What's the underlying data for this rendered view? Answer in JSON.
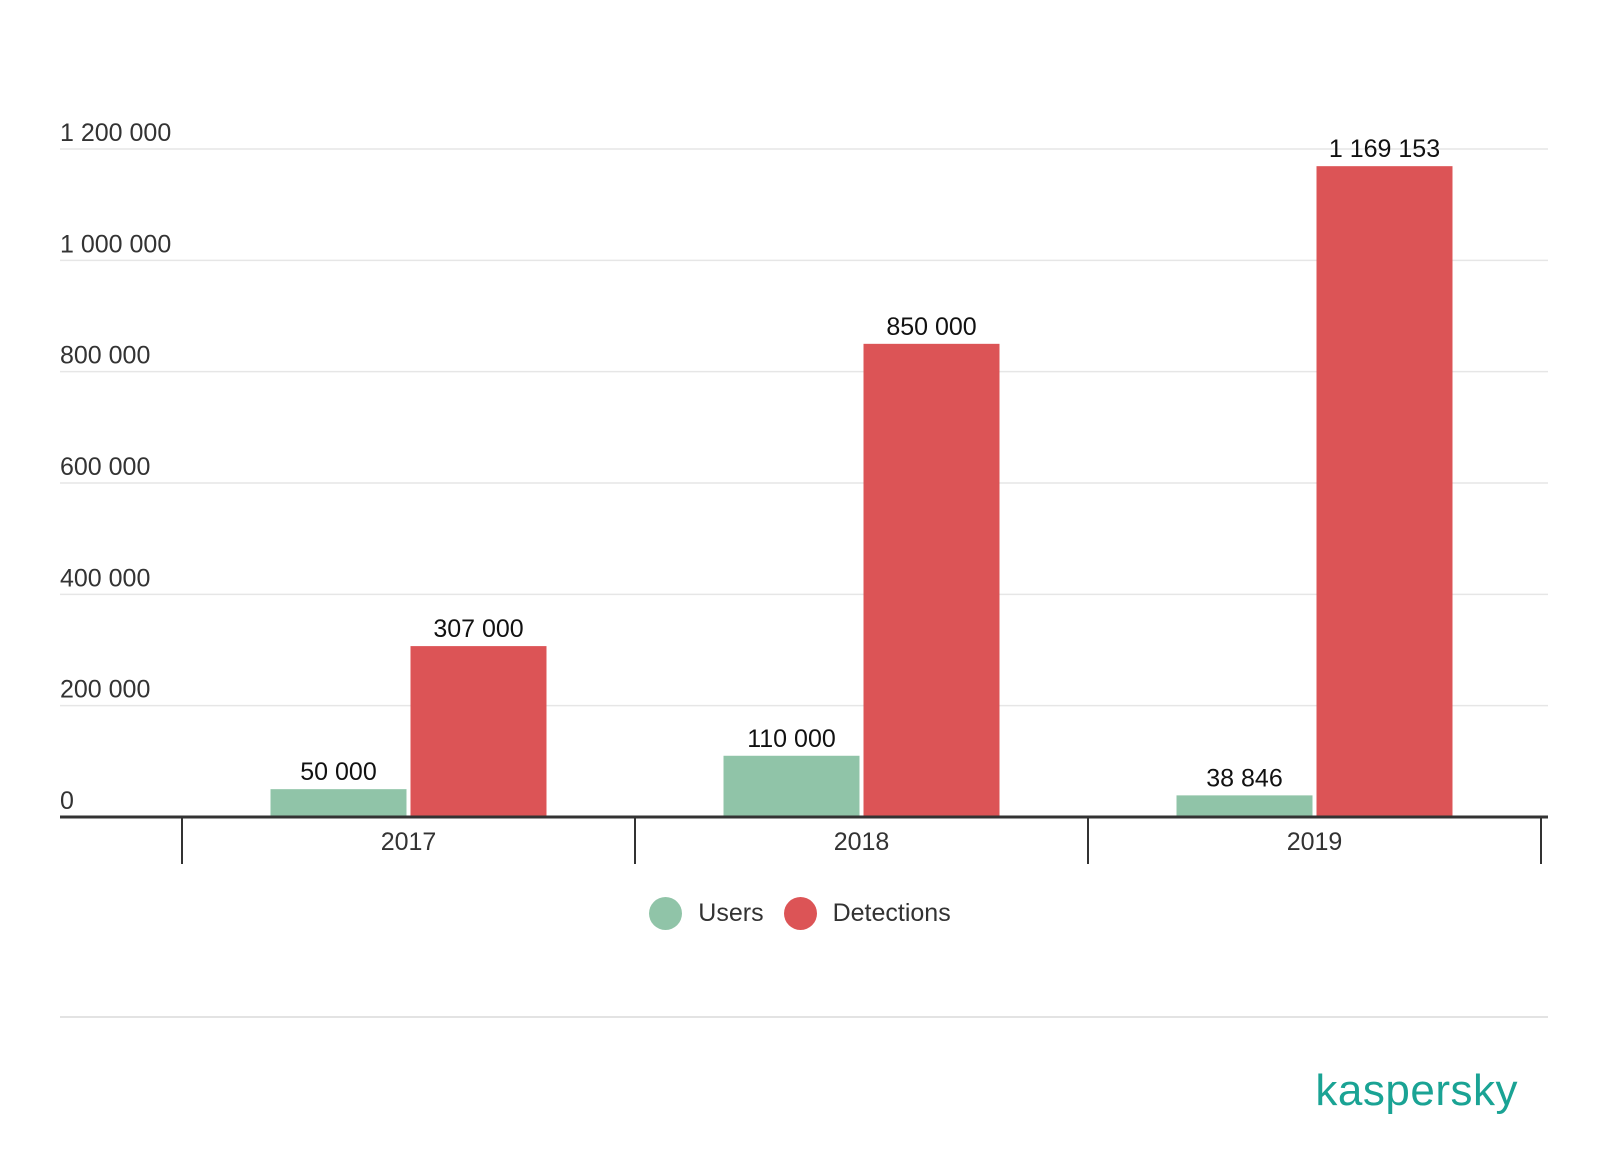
{
  "chart_data": {
    "type": "bar",
    "categories": [
      "2017",
      "2018",
      "2019"
    ],
    "series": [
      {
        "name": "Users",
        "color": "#90c4a8",
        "values": [
          50000,
          110000,
          38846
        ],
        "labels": [
          "50 000",
          "110 000",
          "38 846"
        ]
      },
      {
        "name": "Detections",
        "color": "#dc5456",
        "values": [
          307000,
          850000,
          1169153
        ],
        "labels": [
          "307 000",
          "850 000",
          "1 169 153"
        ]
      }
    ],
    "ylim": [
      0,
      1200000
    ],
    "yticks": [
      0,
      200000,
      400000,
      600000,
      800000,
      1000000,
      1200000
    ],
    "ytick_labels": [
      "0",
      "200 000",
      "400 000",
      "600 000",
      "800 000",
      "1 000 000",
      "1 200 000"
    ],
    "grid": true,
    "legend_position": "bottom-center"
  },
  "brand": {
    "logo_text": "kaspersky",
    "color": "#1aa394"
  }
}
